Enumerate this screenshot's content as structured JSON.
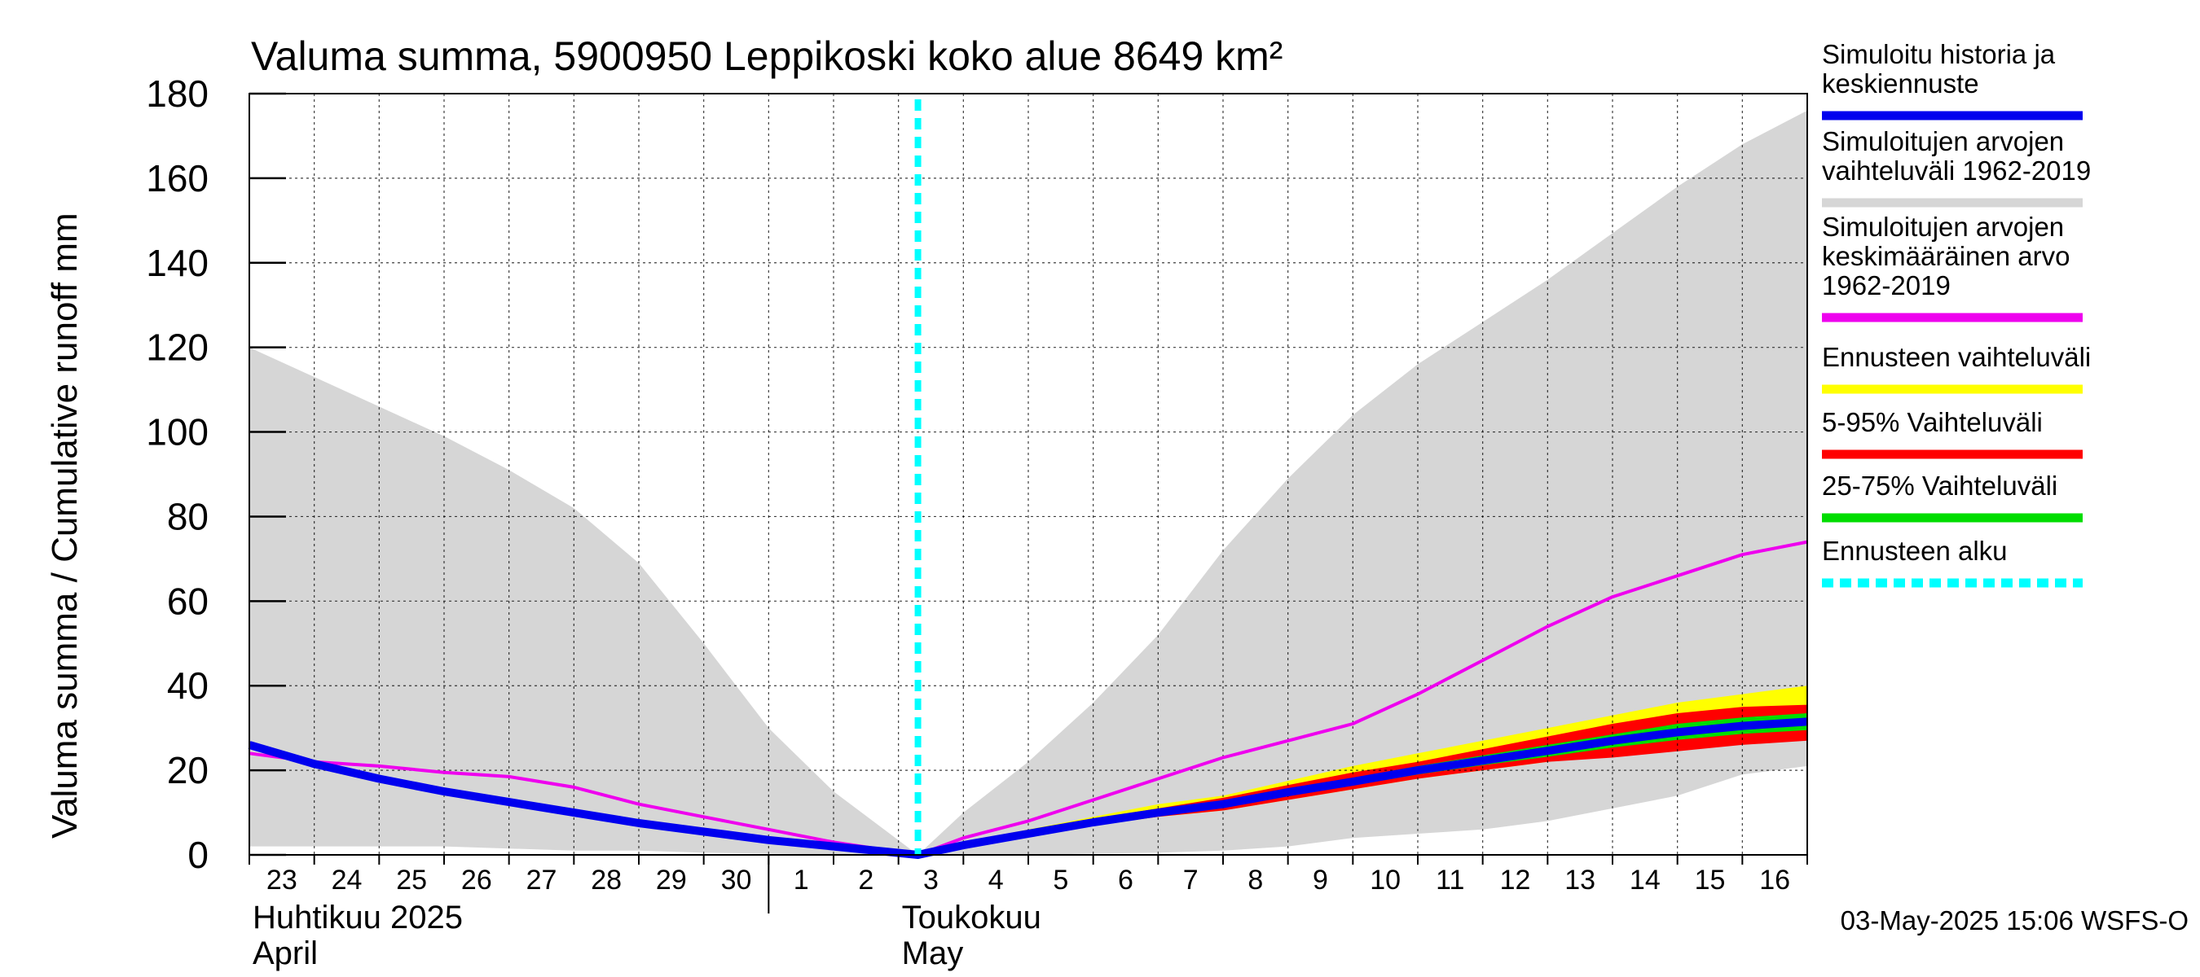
{
  "chart_data": {
    "type": "area",
    "title": "Valuma summa, 5900950 Leppikoski koko alue 8649 km²",
    "ylabel": "Valuma summa / Cumulative runoff    mm",
    "ylim": [
      0,
      180
    ],
    "yticks": [
      0,
      20,
      40,
      60,
      80,
      100,
      120,
      140,
      160,
      180
    ],
    "x_start_day": 23,
    "x_end_day": 47,
    "day_tick_labels": [
      "23",
      "24",
      "25",
      "26",
      "27",
      "28",
      "29",
      "30",
      "1",
      "2",
      "3",
      "4",
      "5",
      "6",
      "7",
      "8",
      "9",
      "10",
      "11",
      "12",
      "13",
      "14",
      "15",
      "16"
    ],
    "month_labels": [
      {
        "fi": "Huhtikuu  2025",
        "en": "April",
        "day": 23
      },
      {
        "fi": "Toukokuu",
        "en": "May",
        "day": 33
      }
    ],
    "forecast_start_day": 33.3,
    "series": [
      {
        "name": "Simuloitujen arvojen vaihteluväli 1962-2019",
        "kind": "band",
        "color": "#d6d6d6",
        "x": [
          23,
          24,
          25,
          26,
          27,
          28,
          29,
          30,
          31,
          32,
          33.3,
          34,
          35,
          36,
          37,
          38,
          39,
          40,
          41,
          42,
          43,
          44,
          45,
          46,
          47
        ],
        "upper": [
          120,
          113,
          106,
          99,
          91,
          82,
          69,
          50,
          30,
          15,
          0,
          10,
          22,
          36,
          52,
          72,
          89,
          104,
          116,
          126,
          136,
          147,
          158,
          168,
          176
        ],
        "lower": [
          2,
          2,
          2,
          2,
          1.5,
          1,
          1,
          0.5,
          0.3,
          0.1,
          0,
          0,
          0,
          0.3,
          0.5,
          1,
          2,
          4,
          5,
          6,
          8,
          11,
          14,
          19,
          21
        ]
      },
      {
        "name": "Ennusteen vaihteluväli",
        "kind": "band",
        "color": "#ffff00",
        "x": [
          33.3,
          34,
          35,
          36,
          37,
          38,
          39,
          40,
          41,
          42,
          43,
          44,
          45,
          46,
          47
        ],
        "upper": [
          0,
          3,
          6,
          9,
          12,
          14,
          17.5,
          21,
          24,
          27,
          30,
          33,
          36,
          38,
          40
        ],
        "lower": [
          0,
          2,
          4.5,
          7,
          9,
          10.5,
          13,
          15.5,
          18,
          20,
          22,
          24,
          25.5,
          27,
          28
        ]
      },
      {
        "name": "5-95% Vaihteluväli",
        "kind": "band",
        "color": "#ff0000",
        "x": [
          33.3,
          34,
          35,
          36,
          37,
          38,
          39,
          40,
          41,
          42,
          43,
          44,
          45,
          46,
          47
        ],
        "upper": [
          0,
          2.6,
          5.5,
          8.5,
          11,
          13.5,
          16.5,
          19.5,
          22,
          25,
          28,
          31,
          33.5,
          35,
          35.5
        ],
        "lower": [
          0,
          2,
          4.5,
          7,
          9,
          10.5,
          13,
          15.5,
          18,
          20,
          22,
          23,
          24.5,
          26,
          27
        ]
      },
      {
        "name": "25-75% Vaihteluväli",
        "kind": "band",
        "color": "#00dd00",
        "x": [
          33.3,
          34,
          35,
          36,
          37,
          38,
          39,
          40,
          41,
          42,
          43,
          44,
          45,
          46,
          47
        ],
        "upper": [
          0,
          2.4,
          5.2,
          8,
          10.5,
          12.5,
          15.5,
          18.2,
          21,
          23.5,
          26,
          28.5,
          31,
          32.5,
          33.5
        ],
        "lower": [
          0,
          2.2,
          4.8,
          7.4,
          9.6,
          11.4,
          14,
          16.4,
          19,
          21.2,
          23.2,
          25.4,
          27.2,
          28.6,
          29.5
        ]
      },
      {
        "name": "Simuloitujen arvojen keskimääräinen arvo 1962-2019",
        "kind": "line",
        "color": "#ee00ee",
        "x": [
          23,
          24,
          25,
          26,
          27,
          28,
          29,
          30,
          31,
          32,
          33.3,
          34,
          35,
          36,
          37,
          38,
          39,
          40,
          41,
          42,
          43,
          44,
          45,
          46,
          47
        ],
        "values": [
          24,
          22,
          21,
          19.5,
          18.5,
          16,
          12,
          9,
          6,
          3,
          0,
          4,
          8,
          13,
          18,
          23,
          27,
          31,
          38,
          46,
          54,
          61,
          66,
          71,
          74
        ]
      },
      {
        "name": "Simuloitu historia ja keskiennuste",
        "kind": "line",
        "color": "#0000ee",
        "x": [
          23,
          24,
          25,
          26,
          27,
          28,
          29,
          30,
          31,
          32,
          33.3,
          34,
          35,
          36,
          37,
          38,
          39,
          40,
          41,
          42,
          43,
          44,
          45,
          46,
          47
        ],
        "values": [
          26,
          21.5,
          18,
          15,
          12.5,
          10,
          7.5,
          5.5,
          3.5,
          2,
          0,
          2.3,
          5,
          7.7,
          10,
          12,
          14.8,
          17.3,
          20,
          22.3,
          24.6,
          27,
          29,
          30.5,
          31.5
        ]
      }
    ]
  },
  "legend": [
    {
      "label": "Simuloitu historia ja\nkeskiennuste",
      "color": "#0000ee",
      "style": "solid"
    },
    {
      "label": "Simuloitujen arvojen\nvaihteluväli 1962-2019",
      "color": "#d6d6d6",
      "style": "solid"
    },
    {
      "label": "Simuloitujen arvojen\nkeskimääräinen arvo\n   1962-2019",
      "color": "#ee00ee",
      "style": "solid"
    },
    {
      "label": "Ennusteen vaihteluväli",
      "color": "#ffff00",
      "style": "solid"
    },
    {
      "label": "5-95% Vaihteluväli",
      "color": "#ff0000",
      "style": "solid"
    },
    {
      "label": "25-75% Vaihteluväli",
      "color": "#00dd00",
      "style": "solid"
    },
    {
      "label": "Ennusteen alku",
      "color": "#00ffff",
      "style": "dashed"
    }
  ],
  "timestamp": "03-May-2025 15:06 WSFS-O"
}
